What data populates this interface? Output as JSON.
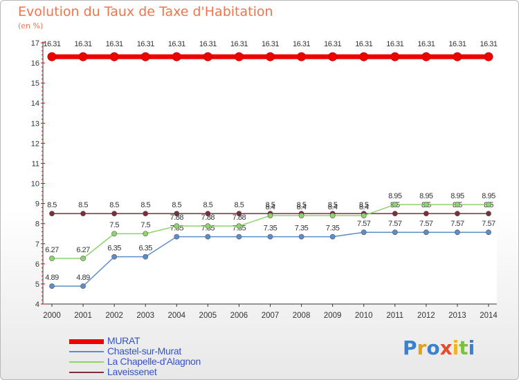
{
  "title": "Evolution du Taux de Taxe d'Habitation",
  "subtitle": "(en %)",
  "logo": {
    "text": "Proxiti",
    "colors": [
      "#3a7fd0",
      "#e0a11c",
      "#3a7fd0",
      "#e94a2a",
      "#f2b31f",
      "#7ac142",
      "#3a7fd0"
    ]
  },
  "chart_data": {
    "type": "line",
    "x": [
      "2000",
      "2001",
      "2002",
      "2003",
      "2004",
      "2005",
      "2006",
      "2007",
      "2008",
      "2009",
      "2010",
      "2011",
      "2012",
      "2013",
      "2014"
    ],
    "ylim": [
      4,
      17
    ],
    "yticks": [
      "4",
      "5",
      "6",
      "7",
      "8",
      "9",
      "10",
      "11",
      "12",
      "13",
      "14",
      "15",
      "16",
      "17"
    ],
    "grid": false,
    "legend": "bottom-left",
    "series": [
      {
        "name": "Laveissenet",
        "color": "#7a2f3a",
        "values": [
          8.5,
          8.5,
          8.5,
          8.5,
          8.5,
          8.5,
          8.5,
          8.5,
          8.5,
          8.5,
          8.5,
          8.5,
          8.5,
          8.5,
          8.5
        ],
        "labels": [
          "8.5",
          "8.5",
          "8.5",
          "8.5",
          "8.5",
          "8.5",
          "8.5",
          "8.5",
          "8.5",
          "8.5",
          "8.5",
          "8.5",
          "8.5",
          "8.5",
          "8.5"
        ]
      },
      {
        "name": "Chastel-sur-Murat",
        "color": "#5b8dc8",
        "values": [
          4.89,
          4.89,
          6.35,
          6.35,
          7.35,
          7.35,
          7.35,
          7.35,
          7.35,
          7.35,
          7.57,
          7.57,
          7.57,
          7.57,
          7.57
        ],
        "labels": [
          "4.89",
          "4.89",
          "6.35",
          "6.35",
          "7.35",
          "7.35",
          "7.35",
          "7.35",
          "7.35",
          "7.35",
          "7.57",
          "7.57",
          "7.57",
          "7.57",
          "7.57"
        ]
      },
      {
        "name": "La Chapelle-d'Alagnon",
        "color": "#8ed46a",
        "values": [
          6.27,
          6.27,
          7.5,
          7.5,
          7.88,
          7.88,
          7.88,
          8.4,
          8.4,
          8.4,
          8.4,
          8.95,
          8.95,
          8.95,
          8.95
        ],
        "labels": [
          "6.27",
          "6.27",
          "7.5",
          "7.5",
          "7.88",
          "7.88",
          "7.88",
          "8.4",
          "8.4",
          "8.4",
          "8.4",
          "8.95",
          "8.95",
          "8.95",
          "8.95"
        ]
      },
      {
        "name": "MURAT",
        "color": "#ee0000",
        "values": [
          16.31,
          16.31,
          16.31,
          16.31,
          16.31,
          16.31,
          16.31,
          16.31,
          16.31,
          16.31,
          16.31,
          16.31,
          16.31,
          16.31,
          16.31
        ],
        "labels": [
          "16.31",
          "16.31",
          "16.31",
          "16.31",
          "16.31",
          "16.31",
          "16.31",
          "16.31",
          "16.31",
          "16.31",
          "16.31",
          "16.31",
          "16.31",
          "16.31",
          "16.31"
        ]
      }
    ],
    "legend_entries": [
      {
        "name": "MURAT",
        "color": "#ee0000"
      },
      {
        "name": "Chastel-sur-Murat",
        "color": "#5b8dc8"
      },
      {
        "name": "La Chapelle-d'Alagnon",
        "color": "#8ed46a"
      },
      {
        "name": "Laveissenet",
        "color": "#7a2f3a"
      }
    ]
  }
}
